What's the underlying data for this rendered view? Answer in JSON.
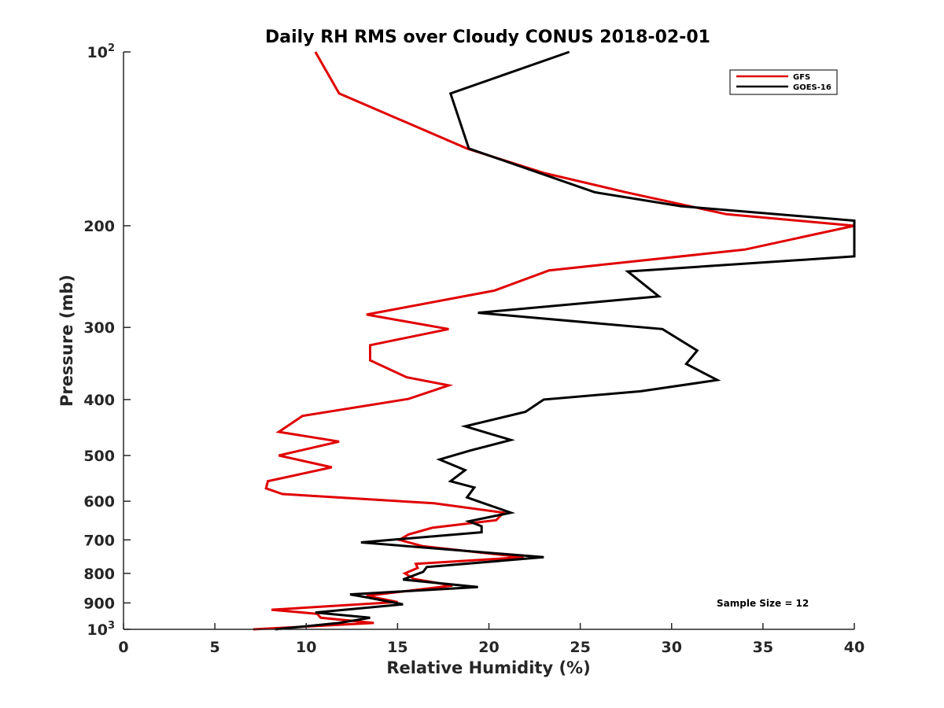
{
  "chart_data": {
    "type": "line",
    "title": "Daily RH RMS over Cloudy CONUS 2018-02-01",
    "xlabel": "Relative Humidity (%)",
    "ylabel": "Pressure (mb)",
    "xlim": [
      0,
      40
    ],
    "ylim": [
      100,
      1000
    ],
    "y_scale": "log",
    "y_reversed": true,
    "grid": false,
    "x_ticks": [
      0,
      5,
      10,
      15,
      20,
      25,
      30,
      35,
      40
    ],
    "x_tick_labels": [
      "0",
      "5",
      "10",
      "15",
      "20",
      "25",
      "30",
      "35",
      "40"
    ],
    "y_ticks": [
      {
        "value": 100,
        "base": "10",
        "exp": "2"
      },
      {
        "value": 200,
        "label": "200"
      },
      {
        "value": 300,
        "label": "300"
      },
      {
        "value": 400,
        "label": "400"
      },
      {
        "value": 500,
        "label": "500"
      },
      {
        "value": 600,
        "label": "600"
      },
      {
        "value": 700,
        "label": "700"
      },
      {
        "value": 800,
        "label": "800"
      },
      {
        "value": 900,
        "label": "900"
      },
      {
        "value": 1000,
        "base": "10",
        "exp": "3"
      }
    ],
    "legend_position": "top-right",
    "annotation": "Sample Size = 12",
    "series": [
      {
        "name": "GFS",
        "color": "#e00000",
        "points": [
          [
            10.5,
            100
          ],
          [
            11.8,
            118
          ],
          [
            18.8,
            147
          ],
          [
            23,
            162
          ],
          [
            27.5,
            175
          ],
          [
            33,
            191
          ],
          [
            40,
            200
          ],
          [
            34,
            220
          ],
          [
            23.3,
            239
          ],
          [
            20.3,
            259
          ],
          [
            13.3,
            285
          ],
          [
            17.8,
            302
          ],
          [
            13.5,
            322
          ],
          [
            13.5,
            342
          ],
          [
            15.5,
            366
          ],
          [
            17.8,
            378
          ],
          [
            15.6,
            399
          ],
          [
            9.8,
            427
          ],
          [
            8.5,
            455
          ],
          [
            11.8,
            473
          ],
          [
            8.5,
            500
          ],
          [
            11.4,
            524
          ],
          [
            7.9,
            554
          ],
          [
            7.8,
            570
          ],
          [
            8.7,
            583
          ],
          [
            17,
            605
          ],
          [
            20.8,
            628
          ],
          [
            20.4,
            647
          ],
          [
            16.9,
            667
          ],
          [
            15.6,
            685
          ],
          [
            15.1,
            700
          ],
          [
            16.4,
            718
          ],
          [
            21.9,
            750
          ],
          [
            16,
            770
          ],
          [
            16.1,
            783
          ],
          [
            15.4,
            800
          ],
          [
            15.9,
            818
          ],
          [
            18,
            840
          ],
          [
            13.3,
            875
          ],
          [
            15,
            897
          ],
          [
            8.1,
            925
          ],
          [
            10.6,
            940
          ],
          [
            10.8,
            955
          ],
          [
            13.7,
            975
          ],
          [
            7.1,
            1000
          ]
        ]
      },
      {
        "name": "GOES-16",
        "color": "#000000",
        "points": [
          [
            24.4,
            100
          ],
          [
            17.9,
            118
          ],
          [
            18.9,
            147
          ],
          [
            25.8,
            175
          ],
          [
            30.5,
            185
          ],
          [
            40,
            196
          ],
          [
            40,
            226
          ],
          [
            27.6,
            240
          ],
          [
            29.3,
            265
          ],
          [
            19.4,
            283
          ],
          [
            29.5,
            302
          ],
          [
            31.4,
            329
          ],
          [
            30.8,
            347
          ],
          [
            32.5,
            370
          ],
          [
            28.3,
            387
          ],
          [
            23,
            400
          ],
          [
            22,
            420
          ],
          [
            18.7,
            445
          ],
          [
            21.2,
            470
          ],
          [
            19,
            490
          ],
          [
            17.3,
            508
          ],
          [
            18.7,
            530
          ],
          [
            17.9,
            554
          ],
          [
            19.2,
            568
          ],
          [
            18.8,
            591
          ],
          [
            19.4,
            600
          ],
          [
            21.2,
            628
          ],
          [
            18.9,
            650
          ],
          [
            19.6,
            663
          ],
          [
            19.6,
            679
          ],
          [
            13,
            707
          ],
          [
            23,
            750
          ],
          [
            16.6,
            780
          ],
          [
            16.4,
            795
          ],
          [
            15.3,
            820
          ],
          [
            19.4,
            845
          ],
          [
            12.4,
            870
          ],
          [
            13.3,
            880
          ],
          [
            15.3,
            905
          ],
          [
            10.5,
            935
          ],
          [
            13.5,
            955
          ],
          [
            11.8,
            975
          ],
          [
            8.3,
            1000
          ]
        ]
      }
    ]
  }
}
